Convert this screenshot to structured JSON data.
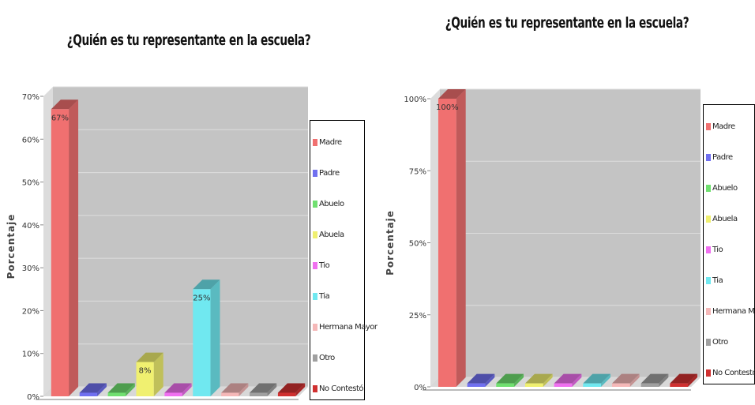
{
  "charts": [
    {
      "title": "¿Quién es tu representante en la escuela?",
      "ylabel": "Porcentaje",
      "legend": [
        "Madre",
        "Padre",
        "Abuelo",
        "Abuela",
        "Tio",
        "Tia",
        "Hermana Mayor",
        "Otro",
        "No Contestó"
      ],
      "colors": [
        "#f07070",
        "#7070f0",
        "#70e070",
        "#f0f070",
        "#f070f0",
        "#70e8f0",
        "#f5b8b8",
        "#a0a0a0",
        "#d03030"
      ]
    },
    {
      "title": "¿Quién es tu representante en la escuela?",
      "ylabel": "Porcentaje",
      "legend": [
        "Madre",
        "Padre",
        "Abuelo",
        "Abuela",
        "Tio",
        "Tia",
        "Hermana Mayor",
        "Otro",
        "No Contestó"
      ],
      "colors": [
        "#f07070",
        "#7070f0",
        "#70e070",
        "#f0f070",
        "#f070f0",
        "#70e8f0",
        "#f5b8b8",
        "#a0a0a0",
        "#d03030"
      ]
    }
  ],
  "chart_data": [
    {
      "type": "bar",
      "title": "¿Quién es tu representante en la escuela?",
      "ylabel": "Porcentaje",
      "xlabel": "",
      "categories": [
        "Madre",
        "Padre",
        "Abuelo",
        "Abuela",
        "Tio",
        "Tia",
        "Hermana Mayor",
        "Otro",
        "No Contestó"
      ],
      "values": [
        67,
        0,
        0,
        8,
        0,
        25,
        0,
        0,
        0
      ],
      "data_labels": [
        "67%",
        "",
        "",
        "8%",
        "",
        "25%",
        "",
        "",
        ""
      ],
      "yticks": [
        "0%",
        "10%",
        "20%",
        "30%",
        "40%",
        "50%",
        "60%",
        "70%"
      ],
      "ylim": [
        0,
        70
      ],
      "legend_position": "right",
      "grid": true
    },
    {
      "type": "bar",
      "title": "¿Quién es tu representante en la escuela?",
      "ylabel": "Porcentaje",
      "xlabel": "",
      "categories": [
        "Madre",
        "Padre",
        "Abuelo",
        "Abuela",
        "Tio",
        "Tia",
        "Hermana Mayor",
        "Otro",
        "No Contestó"
      ],
      "values": [
        100,
        0,
        0,
        0,
        0,
        0,
        0,
        0,
        0
      ],
      "data_labels": [
        "100%",
        "",
        "",
        "",
        "",
        "",
        "",
        "",
        ""
      ],
      "yticks": [
        "0%",
        "25%",
        "50%",
        "75%",
        "100%"
      ],
      "ylim": [
        0,
        100
      ],
      "legend_position": "right",
      "grid": true
    }
  ]
}
